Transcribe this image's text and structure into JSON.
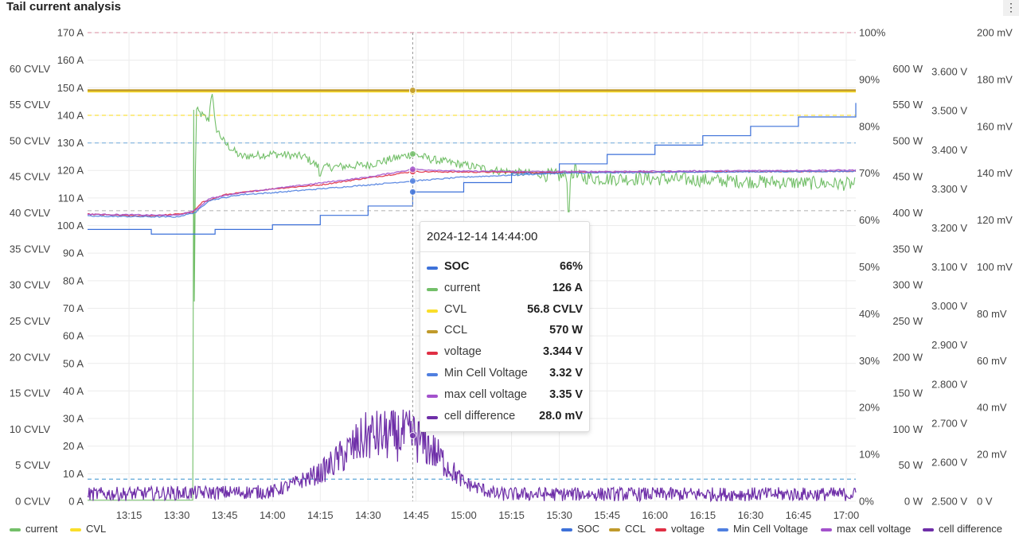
{
  "panel": {
    "title": "Tail current analysis",
    "menu_icon": "more-vertical-icon"
  },
  "colors": {
    "current": "#73bf69",
    "CVL": "#fade2a",
    "SOC": "#3d71d9",
    "CCL": "#c09a2b",
    "voltage": "#e02f44",
    "min_cell": "#4f7fe0",
    "max_cell": "#a352cc",
    "cell_diff": "#6e2ea8"
  },
  "chart_data": {
    "type": "line",
    "time_range": [
      "13:02",
      "17:03"
    ],
    "x_ticks": [
      "13:15",
      "13:30",
      "13:45",
      "14:00",
      "14:15",
      "14:30",
      "14:45",
      "15:00",
      "15:15",
      "15:30",
      "15:45",
      "16:00",
      "16:15",
      "16:30",
      "16:45",
      "17:00"
    ],
    "axes": {
      "cvl": {
        "range": [
          0,
          65
        ],
        "ticks": [
          "0 CVLV",
          "5 CVLV",
          "10 CVLV",
          "15 CVLV",
          "20 CVLV",
          "25 CVLV",
          "30 CVLV",
          "35 CVLV",
          "40 CVLV",
          "45 CVLV",
          "50 CVLV",
          "55 CVLV",
          "60 CVLV"
        ]
      },
      "current": {
        "range": [
          0,
          170
        ],
        "ticks": [
          "0 A",
          "10 A",
          "20 A",
          "30 A",
          "40 A",
          "50 A",
          "60 A",
          "70 A",
          "80 A",
          "90 A",
          "100 A",
          "110 A",
          "120 A",
          "130 A",
          "140 A",
          "150 A",
          "160 A",
          "170 A"
        ]
      },
      "soc": {
        "range": [
          0,
          100
        ],
        "ticks": [
          "0%",
          "10%",
          "20%",
          "30%",
          "40%",
          "50%",
          "60%",
          "70%",
          "80%",
          "90%",
          "100%"
        ]
      },
      "power": {
        "range": [
          0,
          650
        ],
        "ticks": [
          "0 W",
          "50 W",
          "100 W",
          "150 W",
          "200 W",
          "250 W",
          "300 W",
          "350 W",
          "400 W",
          "450 W",
          "500 W",
          "550 W",
          "600 W"
        ]
      },
      "voltage": {
        "range": [
          2.5,
          3.7
        ],
        "ticks": [
          "2.500 V",
          "2.600 V",
          "2.700 V",
          "2.800 V",
          "2.900 V",
          "3.000 V",
          "3.100 V",
          "3.200 V",
          "3.300 V",
          "3.400 V",
          "3.500 V",
          "3.600 V"
        ]
      },
      "mv": {
        "range": [
          0,
          200
        ],
        "ticks": [
          "0 V",
          "20 mV",
          "40 mV",
          "60 mV",
          "80 mV",
          "100 mV",
          "120 mV",
          "140 mV",
          "160 mV",
          "180 mV",
          "200 mV"
        ]
      }
    },
    "thresholds": [
      {
        "axis": "current",
        "value": 170,
        "color": "#e0a0b0"
      },
      {
        "axis": "current",
        "value": 140,
        "color": "#fade2a"
      },
      {
        "axis": "current",
        "value": 130,
        "color": "#8ab8e0"
      },
      {
        "axis": "soc",
        "value": 62,
        "color": "#bbbbbb"
      },
      {
        "axis": "current",
        "value": 8,
        "color": "#5fa8d8"
      }
    ],
    "series": [
      {
        "name": "current",
        "axis": "current",
        "style": "noisy",
        "points": [
          [
            "13:02",
            0.4
          ],
          [
            "13:35",
            0.4
          ],
          [
            "13:35",
            2
          ],
          [
            "13:36",
            142
          ],
          [
            "13:40",
            138
          ],
          [
            "13:41",
            150
          ],
          [
            "13:42",
            136
          ],
          [
            "13:45",
            130
          ],
          [
            "13:50",
            125
          ],
          [
            "14:00",
            126
          ],
          [
            "14:10",
            125
          ],
          [
            "14:15",
            121
          ],
          [
            "14:30",
            122
          ],
          [
            "14:44",
            126
          ],
          [
            "14:50",
            124
          ],
          [
            "15:00",
            122
          ],
          [
            "15:10",
            120
          ],
          [
            "15:30",
            118
          ],
          [
            "15:45",
            117
          ],
          [
            "16:00",
            117
          ],
          [
            "16:30",
            116
          ],
          [
            "17:03",
            115
          ]
        ]
      },
      {
        "name": "CVL",
        "axis": "cvl",
        "points": [
          [
            "13:02",
            56.8
          ],
          [
            "17:03",
            56.8
          ]
        ]
      },
      {
        "name": "SOC",
        "axis": "soc",
        "style": "step",
        "points": [
          [
            "13:02",
            58
          ],
          [
            "13:22",
            58
          ],
          [
            "13:22",
            57
          ],
          [
            "13:40",
            57
          ],
          [
            "13:42",
            58
          ],
          [
            "14:00",
            59
          ],
          [
            "14:15",
            61
          ],
          [
            "14:30",
            63
          ],
          [
            "14:44",
            66
          ],
          [
            "15:00",
            68
          ],
          [
            "15:15",
            70
          ],
          [
            "15:30",
            72
          ],
          [
            "15:45",
            74
          ],
          [
            "16:00",
            76
          ],
          [
            "16:15",
            78
          ],
          [
            "16:30",
            80
          ],
          [
            "16:45",
            82
          ],
          [
            "17:03",
            85
          ]
        ]
      },
      {
        "name": "CCL",
        "axis": "power",
        "points": [
          [
            "13:02",
            570
          ],
          [
            "17:03",
            570
          ]
        ]
      },
      {
        "name": "voltage",
        "axis": "voltage",
        "style": "smooth",
        "points": [
          [
            "13:02",
            3.235
          ],
          [
            "13:20",
            3.23
          ],
          [
            "13:30",
            3.235
          ],
          [
            "13:35",
            3.24
          ],
          [
            "13:38",
            3.265
          ],
          [
            "13:45",
            3.285
          ],
          [
            "14:00",
            3.3
          ],
          [
            "14:15",
            3.31
          ],
          [
            "14:30",
            3.328
          ],
          [
            "14:44",
            3.344
          ],
          [
            "15:00",
            3.343
          ],
          [
            "15:30",
            3.342
          ],
          [
            "16:00",
            3.343
          ],
          [
            "17:03",
            3.345
          ]
        ]
      },
      {
        "name": "Min Cell Voltage",
        "axis": "voltage",
        "style": "smooth",
        "points": [
          [
            "13:02",
            3.23
          ],
          [
            "13:30",
            3.228
          ],
          [
            "13:36",
            3.24
          ],
          [
            "13:40",
            3.27
          ],
          [
            "13:50",
            3.285
          ],
          [
            "14:00",
            3.29
          ],
          [
            "14:15",
            3.3
          ],
          [
            "14:30",
            3.31
          ],
          [
            "14:44",
            3.32
          ],
          [
            "15:00",
            3.33
          ],
          [
            "15:15",
            3.335
          ],
          [
            "15:30",
            3.34
          ],
          [
            "16:00",
            3.342
          ],
          [
            "17:03",
            3.345
          ]
        ]
      },
      {
        "name": "max cell voltage",
        "axis": "voltage",
        "style": "smooth",
        "points": [
          [
            "13:02",
            3.235
          ],
          [
            "13:30",
            3.232
          ],
          [
            "13:36",
            3.245
          ],
          [
            "13:40",
            3.275
          ],
          [
            "13:50",
            3.29
          ],
          [
            "14:00",
            3.3
          ],
          [
            "14:15",
            3.315
          ],
          [
            "14:30",
            3.33
          ],
          [
            "14:44",
            3.35
          ],
          [
            "15:00",
            3.345
          ],
          [
            "15:30",
            3.344
          ],
          [
            "16:00",
            3.345
          ],
          [
            "17:03",
            3.348
          ]
        ]
      },
      {
        "name": "cell difference",
        "axis": "mv",
        "style": "noisy",
        "points": [
          [
            "13:02",
            3
          ],
          [
            "14:00",
            4
          ],
          [
            "14:15",
            12
          ],
          [
            "14:30",
            28
          ],
          [
            "14:44",
            28
          ],
          [
            "14:50",
            22
          ],
          [
            "15:00",
            8
          ],
          [
            "15:10",
            3
          ],
          [
            "16:00",
            3
          ],
          [
            "17:03",
            3
          ]
        ]
      }
    ],
    "cursor": {
      "time": "14:44"
    }
  },
  "tooltip": {
    "time": "2024-12-14 14:44:00",
    "rows": [
      {
        "label": "SOC",
        "value": "66%",
        "color": "#3d71d9"
      },
      {
        "label": "current",
        "value": "126 A",
        "color": "#73bf69"
      },
      {
        "label": "CVL",
        "value": "56.8 CVLV",
        "color": "#fade2a"
      },
      {
        "label": "CCL",
        "value": "570 W",
        "color": "#c09a2b"
      },
      {
        "label": "voltage",
        "value": "3.344 V",
        "color": "#e02f44"
      },
      {
        "label": "Min Cell Voltage",
        "value": "3.32 V",
        "color": "#4f7fe0"
      },
      {
        "label": "max cell voltage",
        "value": "3.35 V",
        "color": "#a352cc"
      },
      {
        "label": "cell difference",
        "value": "28.0 mV",
        "color": "#6e2ea8"
      }
    ]
  },
  "legend": {
    "left": [
      {
        "label": "current",
        "color": "#73bf69"
      },
      {
        "label": "CVL",
        "color": "#fade2a"
      }
    ],
    "right": [
      {
        "label": "SOC",
        "color": "#3d71d9"
      },
      {
        "label": "CCL",
        "color": "#c09a2b"
      },
      {
        "label": "voltage",
        "color": "#e02f44"
      },
      {
        "label": "Min Cell Voltage",
        "color": "#4f7fe0"
      },
      {
        "label": "max cell voltage",
        "color": "#a352cc"
      },
      {
        "label": "cell difference",
        "color": "#6e2ea8"
      }
    ]
  }
}
